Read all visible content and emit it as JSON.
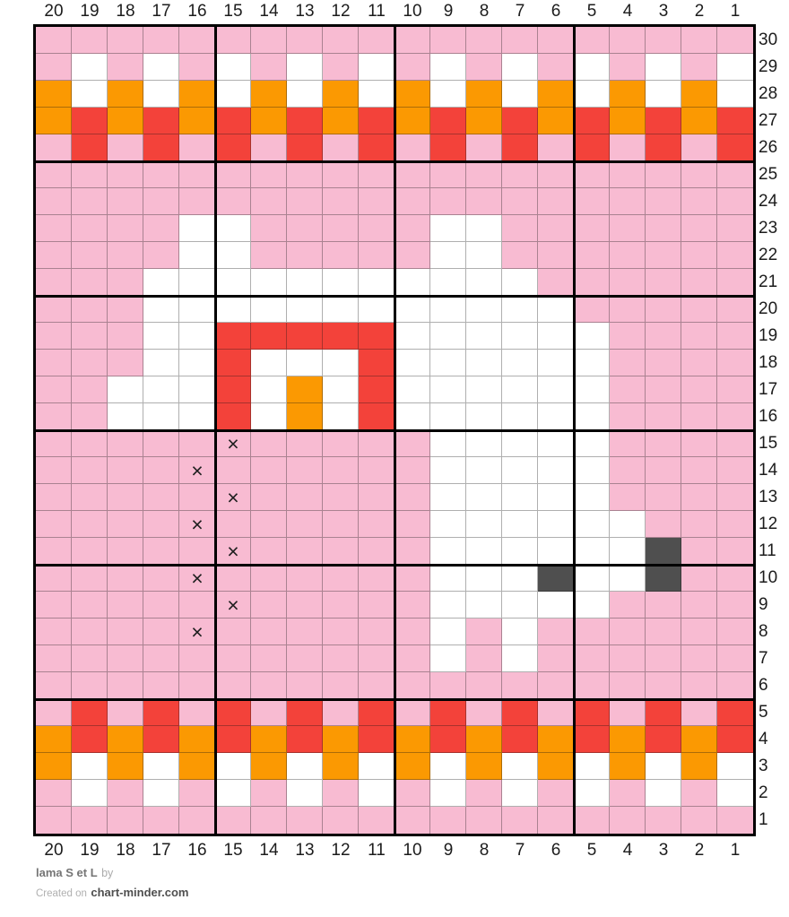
{
  "chart_data": {
    "type": "heatmap",
    "title": "lama S et L",
    "description": "Knitting colorwork chart, 20 stitches x 30 rows",
    "columns": [
      "20",
      "19",
      "18",
      "17",
      "16",
      "15",
      "14",
      "13",
      "12",
      "11",
      "10",
      "9",
      "8",
      "7",
      "6",
      "5",
      "4",
      "3",
      "2",
      "1"
    ],
    "row_labels": [
      "30",
      "29",
      "28",
      "27",
      "26",
      "25",
      "24",
      "23",
      "22",
      "21",
      "20",
      "19",
      "18",
      "17",
      "16",
      "15",
      "14",
      "13",
      "12",
      "11",
      "10",
      "9",
      "8",
      "7",
      "6",
      "5",
      "4",
      "3",
      "2",
      "1"
    ],
    "palette": {
      "P": "#F8BBD2",
      "W": "#FFFFFF",
      "O": "#FB9902",
      "R": "#F3423A",
      "D": "#4F4F4F"
    },
    "palette_names": {
      "P": "pink",
      "W": "white",
      "O": "orange",
      "R": "red",
      "D": "dark-gray"
    },
    "cell_rows": [
      "PPPPPPPPPPPPPPPPPPPP",
      "PWPWPWPWPWPWPWPWPWPW",
      "OWOWOWOWOWOWOWOWOWOW",
      "OROROROROROROROROROR",
      "PRPRPRPRPRPRPRPRPRPR",
      "PPPPPPPPPPPPPPPPPPPP",
      "PPPPPPPPPPPPPPPPPPPP",
      "PPPPWWPPPPPWWPPPPPPP",
      "PPPPWWPPPPPWWPPPPPPP",
      "PPPWWWWWWWWWWWPPPPPP",
      "PPPWWWWWWWWWWWWPPPPP",
      "PPPWWRRRRRWWWWWWPPPP",
      "PPPWWRWWWRWWWWWWPPPP",
      "PPWWWRWOWRWWWWWWPPPP",
      "PPWWWRWOWRWWWWWWPPPP",
      "PPPPPPPPPPPWWWWWPPPP",
      "PPPPPPPPPPPWWWWWPPPP",
      "PPPPPPPPPPPWWWWWPPPP",
      "PPPPPPPPPPPWWWWWWPPP",
      "PPPPPPPPPPPWWWWWWDPP",
      "PPPPPPPPPPPWWWDWWDPP",
      "PPPPPPPPPPPWWWWWPPPP",
      "PPPPPPPPPPPWPWPPPPPP",
      "PPPPPPPPPPPWPWPPPPPP",
      "PPPPPPPPPPPPPPPPPPPP",
      "PRPRPRPRPRPRPRPRPRPR",
      "OROROROROROROROROROR",
      "OWOWOWOWOWOWOWOWOWOW",
      "PWPWPWPWPWPWPWPWPWPW",
      "PPPPPPPPPPPPPPPPPPPP"
    ],
    "x_marks": [
      {
        "row": 15,
        "col": 15
      },
      {
        "row": 14,
        "col": 16
      },
      {
        "row": 13,
        "col": 15
      },
      {
        "row": 12,
        "col": 16
      },
      {
        "row": 11,
        "col": 15
      },
      {
        "row": 10,
        "col": 16
      },
      {
        "row": 9,
        "col": 15
      },
      {
        "row": 8,
        "col": 16
      }
    ],
    "x_symbol": "×",
    "n_columns": 20,
    "n_rows": 30,
    "major_grid_every": 5,
    "legend_position": "none"
  },
  "footer": {
    "title": "lama S et L",
    "by": "by",
    "created_prefix": "Created on",
    "site": "chart-minder.com"
  }
}
